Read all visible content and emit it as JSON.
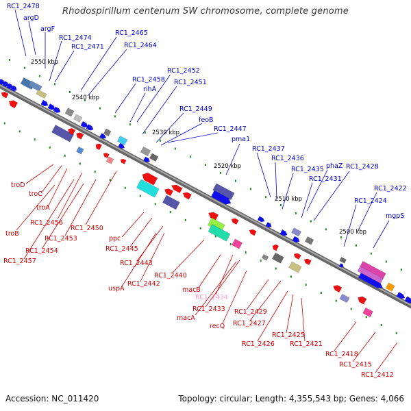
{
  "title": "Rhodospirillum centenum SW chromosome, complete genome",
  "footer": {
    "accession": "Accession: NC_011420",
    "summary": "Topology: circular; Length: 4,355,543 bp; Genes: 4,066"
  },
  "colors": {
    "forward_label": "#0000cc",
    "reverse_label": "#cc0000",
    "rna_label": "#ff99cc",
    "backbone": "#808080",
    "forward_feature": "#0000ee",
    "reverse_feature": "#ee0000"
  },
  "kbp_ticks": [
    "2550 kbp",
    "2540 kbp",
    "2530 kbp",
    "2520 kbp",
    "2510 kbp",
    "2500 kbp"
  ],
  "upper_labels": [
    "RC1_2478",
    "argD",
    "argF",
    "RC1_2474",
    "RC1_2471",
    "RC1_2465",
    "RC1_2464",
    "RC1_2458",
    "rihA",
    "RC1_2452",
    "RC1_2451",
    "RC1_2449",
    "feoB",
    "RC1_2447",
    "pma1",
    "RC1_2437",
    "RC1_2436",
    "RC1_2435",
    "phaZ",
    "RC1_2428",
    "RC1_2431",
    "RC1_2424",
    "RC1_2422",
    "mgpS"
  ],
  "lower_labels": [
    "troD",
    "troC",
    "troA",
    "RC1_2456",
    "troB",
    "RC1_2453",
    "RC1_2450",
    "RC1_2454",
    "RC1_2457",
    "ppc",
    "RC1_2445",
    "RC1_2443",
    "uspA",
    "RC1_2442",
    "RC1_2440",
    "macB",
    "RC1_2434",
    "RC1_2433",
    "macA",
    "recQ",
    "RC1_2429",
    "RC1_2427",
    "RC1_2426",
    "RC1_2425",
    "RC1_2421",
    "RC1_2418",
    "RC1_2415",
    "RC1_2412"
  ]
}
